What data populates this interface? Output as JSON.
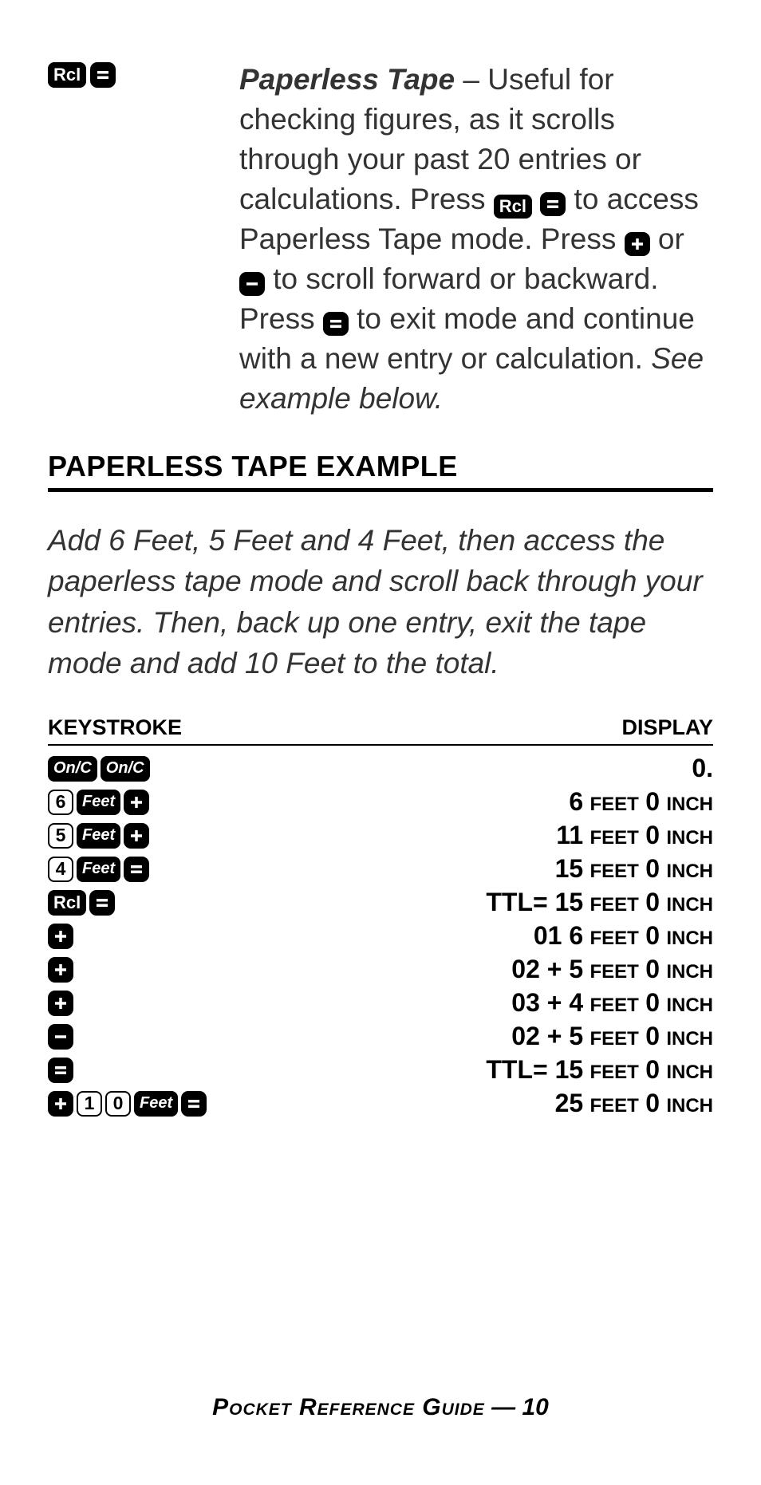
{
  "intro": {
    "title": "Paperless Tape",
    "text_part1": " – Useful for checking figures, as it scrolls through your past 20 entries or calculations. Press ",
    "text_part2": " to access Paperless Tape mode. Press ",
    "text_part3": " or ",
    "text_part4": " to scroll forward or backward. Press ",
    "text_part5": " to exit mode and continue with a new entry or calculation. ",
    "text_see": "See example below."
  },
  "section_heading": "PAPERLESS TAPE EXAMPLE",
  "example_description": "Add 6 Feet, 5 Feet and 4 Feet, then access the paperless tape mode and scroll back through your entries. Then, back up one entry, exit the tape mode and add 10 Feet to the total.",
  "table": {
    "header_left": "KEYSTROKE",
    "header_right": "DISPLAY",
    "rows": [
      {
        "keys": [
          {
            "type": "onc",
            "label": "On/C"
          },
          {
            "type": "onc",
            "label": "On/C"
          }
        ],
        "display_prefix": "",
        "display_num1": "0.",
        "display_unit1": "",
        "display_num2": "",
        "display_unit2": ""
      },
      {
        "keys": [
          {
            "type": "digit",
            "label": "6"
          },
          {
            "type": "feet",
            "label": "Feet"
          },
          {
            "type": "plus"
          }
        ],
        "display_prefix": "",
        "display_num1": "6",
        "display_unit1": "FEET",
        "display_num2": "0",
        "display_unit2": "INCH"
      },
      {
        "keys": [
          {
            "type": "digit",
            "label": "5"
          },
          {
            "type": "feet",
            "label": "Feet"
          },
          {
            "type": "plus"
          }
        ],
        "display_prefix": "",
        "display_num1": "11",
        "display_unit1": "FEET",
        "display_num2": "0",
        "display_unit2": "INCH"
      },
      {
        "keys": [
          {
            "type": "digit",
            "label": "4"
          },
          {
            "type": "feet",
            "label": "Feet"
          },
          {
            "type": "equals"
          }
        ],
        "display_prefix": "",
        "display_num1": "15",
        "display_unit1": "FEET",
        "display_num2": "0",
        "display_unit2": "INCH"
      },
      {
        "keys": [
          {
            "type": "rcl",
            "label": "Rcl"
          },
          {
            "type": "equals"
          }
        ],
        "display_prefix": "TTL=  ",
        "display_num1": "15",
        "display_unit1": "FEET",
        "display_num2": "0",
        "display_unit2": "INCH"
      },
      {
        "keys": [
          {
            "type": "plus"
          }
        ],
        "display_prefix": "01  ",
        "display_num1": "6",
        "display_unit1": "FEET",
        "display_num2": "0",
        "display_unit2": "INCH"
      },
      {
        "keys": [
          {
            "type": "plus"
          }
        ],
        "display_prefix": "02 +  ",
        "display_num1": "5",
        "display_unit1": "FEET",
        "display_num2": "0",
        "display_unit2": "INCH"
      },
      {
        "keys": [
          {
            "type": "plus"
          }
        ],
        "display_prefix": "03 +  ",
        "display_num1": "4",
        "display_unit1": "FEET",
        "display_num2": "0",
        "display_unit2": "INCH"
      },
      {
        "keys": [
          {
            "type": "minus"
          }
        ],
        "display_prefix": "02 +  ",
        "display_num1": "5",
        "display_unit1": "FEET",
        "display_num2": "0",
        "display_unit2": "INCH"
      },
      {
        "keys": [
          {
            "type": "equals"
          }
        ],
        "display_prefix": "TTL=  ",
        "display_num1": "15",
        "display_unit1": "FEET",
        "display_num2": "0",
        "display_unit2": "INCH"
      },
      {
        "keys": [
          {
            "type": "plus"
          },
          {
            "type": "digit",
            "label": "1"
          },
          {
            "type": "digit",
            "label": "0"
          },
          {
            "type": "feet",
            "label": "Feet"
          },
          {
            "type": "equals"
          }
        ],
        "display_prefix": "",
        "display_num1": "25",
        "display_unit1": "FEET",
        "display_num2": "0",
        "display_unit2": "INCH"
      }
    ]
  },
  "keys": {
    "rcl": "Rcl",
    "feet": "Feet",
    "onc": "On/C"
  },
  "footer": {
    "text_sc": "Pocket Reference Guide",
    "text_suffix": " — 10"
  },
  "colors": {
    "key_bg": "#000000",
    "key_fg": "#ffffff",
    "text": "#333333",
    "page_bg": "#ffffff"
  }
}
